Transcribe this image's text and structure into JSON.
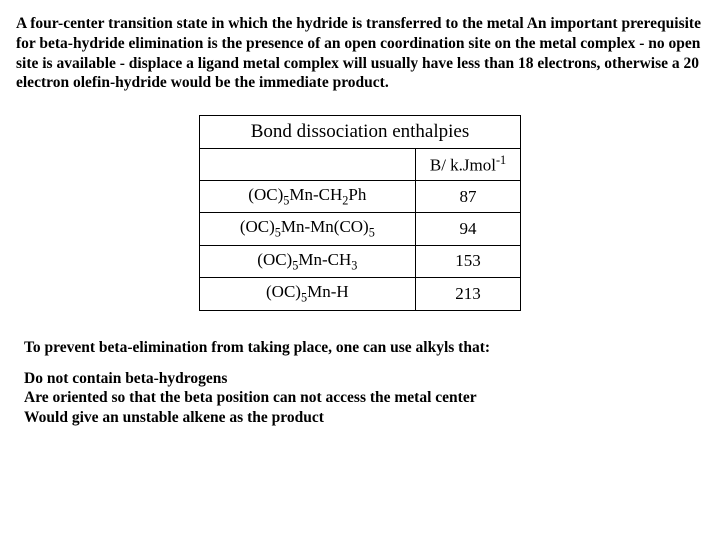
{
  "intro": "A four-center transition state in which the hydride is transferred to the metal An important prerequisite for beta-hydride elimination is the presence of an open coordination site on the metal complex - no open site is available - displace a ligand metal complex will usually have less than 18 electrons, otherwise a 20 electron olefin-hydride would be the immediate product.",
  "table": {
    "title": "Bond dissociation enthalpies",
    "unit_prefix": "B/ k.Jmol",
    "unit_exp": "-1",
    "rows": [
      {
        "formula_html": "(OC)<span class='sub'>5</span>Mn-CH<span class='sub'>2</span>Ph",
        "value": "87"
      },
      {
        "formula_html": "(OC)<span class='sub'>5</span>Mn-Mn(CO)<span class='sub'>5</span>",
        "value": "94"
      },
      {
        "formula_html": "(OC)<span class='sub'>5</span>Mn-CH<span class='sub'>3</span>",
        "value": "153"
      },
      {
        "formula_html": "(OC)<span class='sub'>5</span>Mn-H",
        "value": "213"
      }
    ],
    "border_color": "#000000",
    "font_family": "Times New Roman",
    "cell_fontsize": 17
  },
  "outro_lead": "To prevent beta-elimination from taking place, one can use alkyls that:",
  "outro_items": [
    "Do not contain beta-hydrogens",
    "Are oriented so that the beta position can not access the metal center",
    "Would give an unstable alkene as the product"
  ],
  "colors": {
    "background": "#ffffff",
    "text": "#000000",
    "table_border": "#000000"
  },
  "typography": {
    "body_fontsize": 15.5,
    "body_weight": "bold",
    "table_title_fontsize": 19
  }
}
